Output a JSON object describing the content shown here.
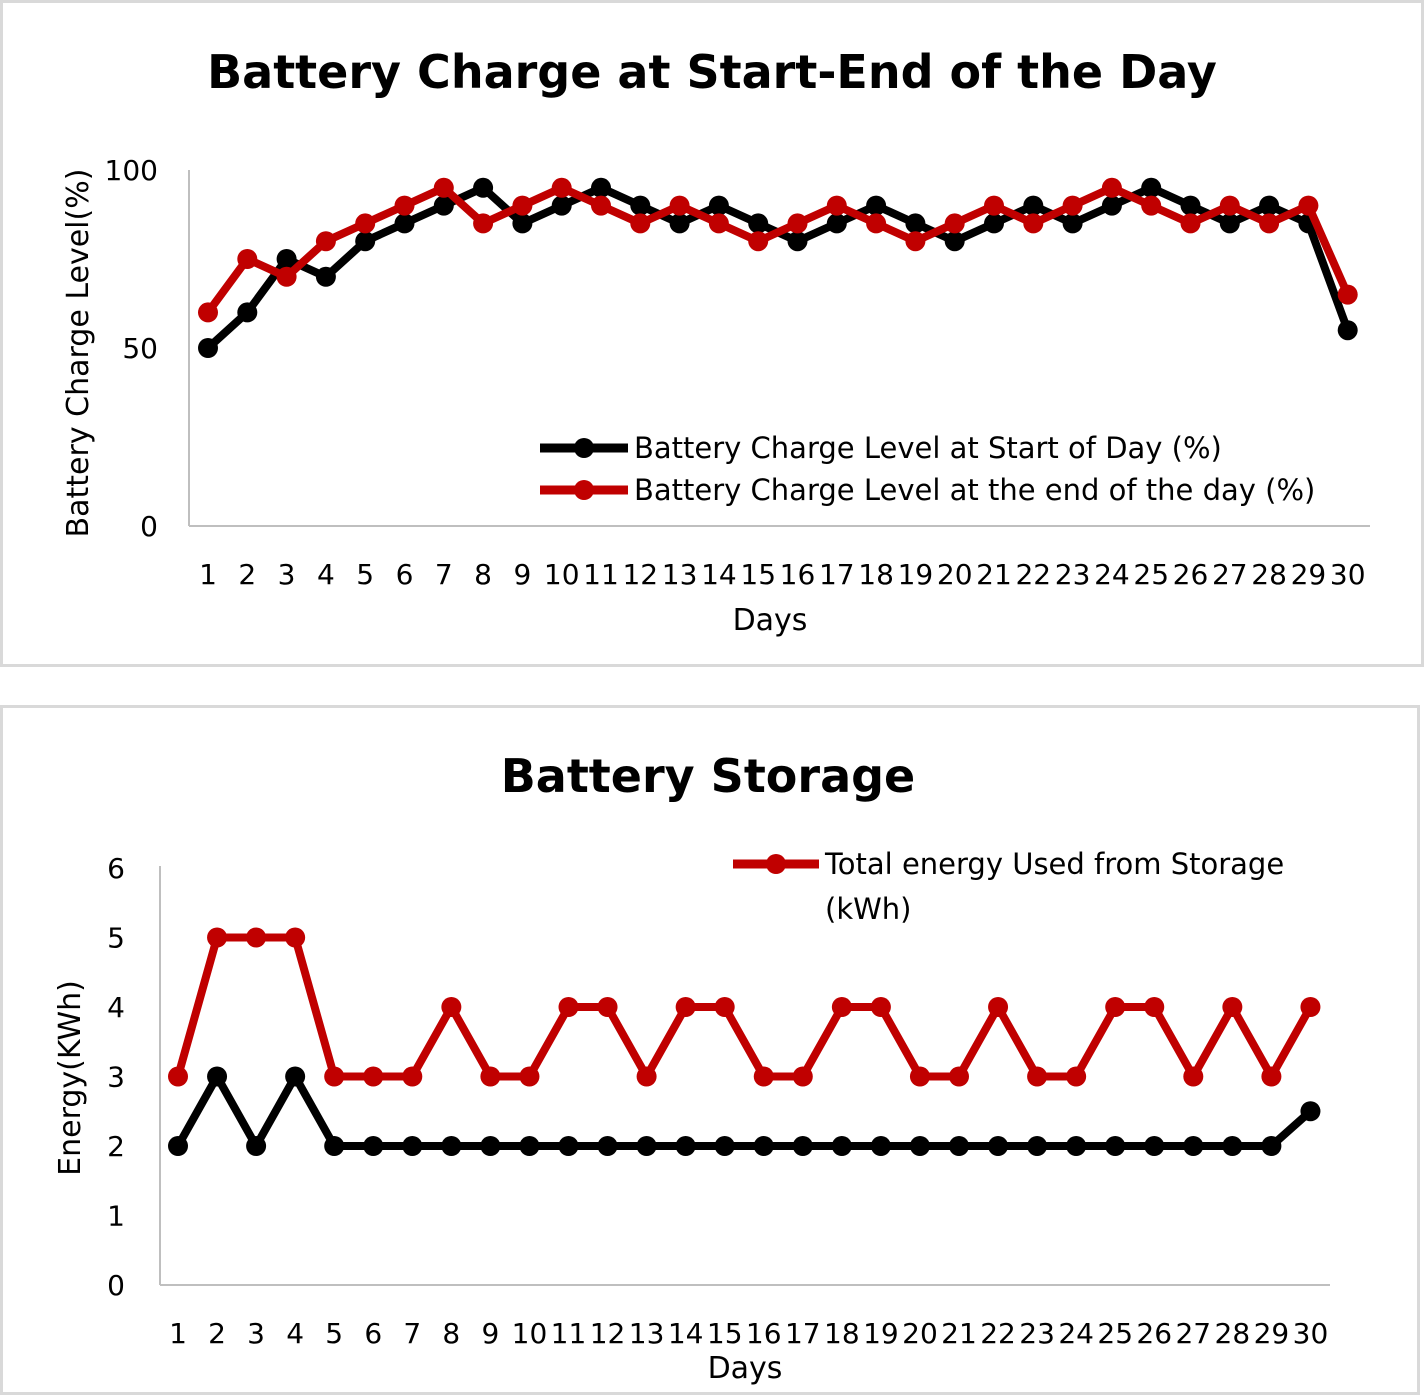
{
  "colors": {
    "start": "#000000",
    "end": "#c00000"
  },
  "chart_data": [
    {
      "type": "line",
      "title": "Battery Charge at Start-End of the Day",
      "xlabel": "Days",
      "ylabel": "Battery Charge Level(%)",
      "ylim": [
        0,
        100
      ],
      "yticks": [
        "0",
        "50",
        "100"
      ],
      "categories": [
        "1",
        "2",
        "3",
        "4",
        "5",
        "6",
        "7",
        "8",
        "9",
        "10",
        "11",
        "12",
        "13",
        "14",
        "15",
        "16",
        "17",
        "18",
        "19",
        "20",
        "21",
        "22",
        "23",
        "24",
        "25",
        "26",
        "27",
        "28",
        "29",
        "30"
      ],
      "series": [
        {
          "name": "Battery Charge Level at Start of Day (%)",
          "values": [
            50,
            60,
            75,
            70,
            80,
            85,
            90,
            95,
            85,
            90,
            95,
            90,
            85,
            90,
            85,
            80,
            85,
            90,
            85,
            80,
            85,
            90,
            85,
            90,
            95,
            90,
            85,
            90,
            85,
            55
          ]
        },
        {
          "name": "Battery Charge Level at the end of the day (%)",
          "values": [
            60,
            75,
            70,
            80,
            85,
            90,
            95,
            85,
            90,
            95,
            90,
            85,
            90,
            85,
            80,
            85,
            90,
            85,
            80,
            85,
            90,
            85,
            90,
            95,
            90,
            85,
            90,
            85,
            90,
            65
          ]
        }
      ]
    },
    {
      "type": "line",
      "title": "Battery Storage",
      "xlabel": "Days",
      "ylabel": "Energy(KWh)",
      "ylim": [
        0,
        6
      ],
      "yticks": [
        "0",
        "1",
        "2",
        "3",
        "4",
        "5",
        "6"
      ],
      "categories": [
        "1",
        "2",
        "3",
        "4",
        "5",
        "6",
        "7",
        "8",
        "9",
        "10",
        "11",
        "12",
        "13",
        "14",
        "15",
        "16",
        "17",
        "18",
        "19",
        "20",
        "21",
        "22",
        "23",
        "24",
        "25",
        "26",
        "27",
        "28",
        "29",
        "30"
      ],
      "series": [
        {
          "name": "Total energy Used from Storage (kWh)",
          "legend_lines": [
            "Total energy Used from Storage",
            "(kWh)"
          ],
          "values": [
            3,
            5,
            5,
            5,
            3,
            3,
            3,
            4,
            3,
            3,
            4,
            4,
            3,
            4,
            4,
            3,
            3,
            4,
            4,
            3,
            3,
            4,
            3,
            3,
            4,
            4,
            3,
            4,
            3,
            4
          ]
        },
        {
          "name": "",
          "values": [
            2,
            3,
            2,
            3,
            2,
            2,
            2,
            2,
            2,
            2,
            2,
            2,
            2,
            2,
            2,
            2,
            2,
            2,
            2,
            2,
            2,
            2,
            2,
            2,
            2,
            2,
            2,
            2,
            2,
            2.5
          ]
        }
      ]
    }
  ]
}
